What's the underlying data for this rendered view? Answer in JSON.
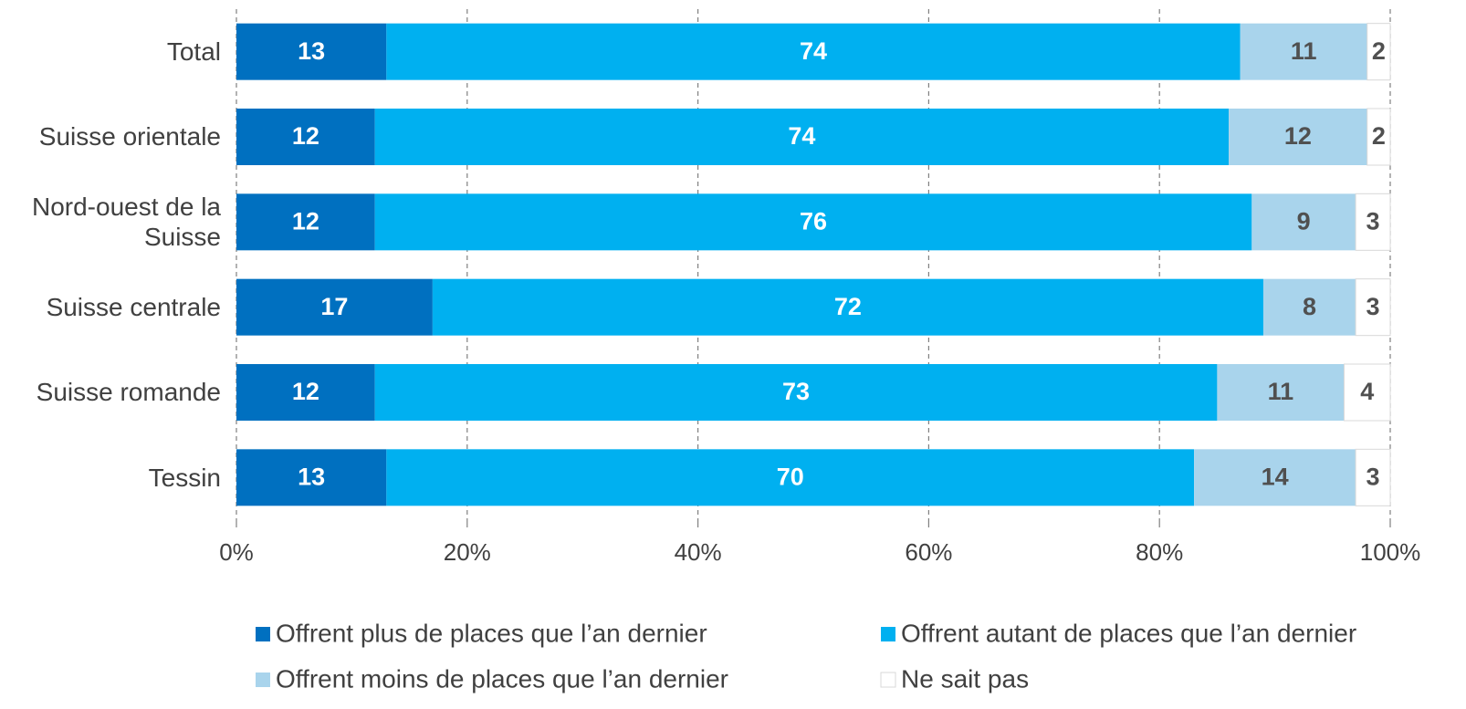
{
  "chart_data": {
    "type": "stacked-bar-horizontal",
    "categories": [
      "Total",
      "Suisse orientale",
      "Nord-ouest de la Suisse",
      "Suisse centrale",
      "Suisse romande",
      "Tessin"
    ],
    "series": [
      {
        "name": "Offrent plus de places que l’an dernier",
        "color": "#0070c0",
        "values": [
          13,
          12,
          12,
          17,
          12,
          13
        ]
      },
      {
        "name": "Offrent autant de places que l’an dernier",
        "color": "#00b0f0",
        "values": [
          74,
          74,
          76,
          72,
          73,
          70
        ]
      },
      {
        "name": "Offrent moins de places que l’an dernier",
        "color": "#a9d4ec",
        "values": [
          11,
          12,
          9,
          8,
          11,
          14
        ]
      },
      {
        "name": "Ne sait pas",
        "color": "#ffffff",
        "values": [
          2,
          2,
          3,
          3,
          4,
          3
        ]
      }
    ],
    "xlim": [
      0,
      100
    ],
    "xticks": [
      {
        "value": 0,
        "label": "0%"
      },
      {
        "value": 20,
        "label": "20%"
      },
      {
        "value": 40,
        "label": "40%"
      },
      {
        "value": 60,
        "label": "60%"
      },
      {
        "value": 80,
        "label": "80%"
      },
      {
        "value": 100,
        "label": "100%"
      }
    ],
    "grid": true,
    "legend": "bottom"
  }
}
